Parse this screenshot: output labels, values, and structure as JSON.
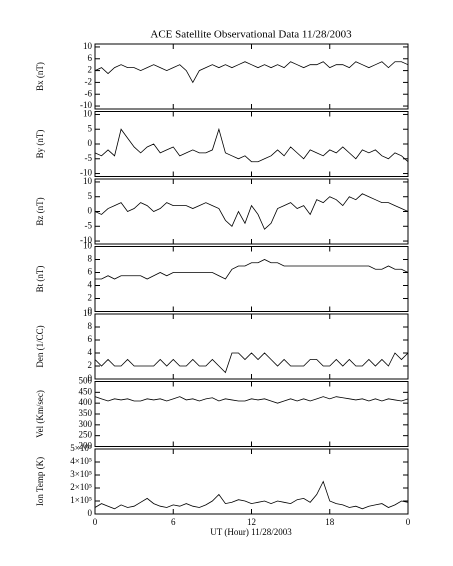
{
  "chart_data": [
    {
      "type": "line",
      "title": "ACE Satellite Observational Data   11/28/2003",
      "ylabel": "Bx (nT)",
      "color": "#000000",
      "x": [
        0,
        0.5,
        1,
        1.5,
        2,
        2.5,
        3,
        3.5,
        4,
        4.5,
        5,
        5.5,
        6,
        6.5,
        7,
        7.5,
        8,
        8.5,
        9,
        9.5,
        10,
        10.5,
        11,
        11.5,
        12,
        12.5,
        13,
        13.5,
        14,
        14.5,
        15,
        15.5,
        16,
        16.5,
        17,
        17.5,
        18,
        18.5,
        19,
        19.5,
        20,
        20.5,
        21,
        21.5,
        22,
        22.5,
        23,
        23.5,
        24
      ],
      "values": [
        2,
        3,
        1,
        3,
        4,
        3,
        3,
        2,
        3,
        4,
        3,
        2,
        3,
        4,
        2,
        -2,
        2,
        3,
        4,
        3,
        4,
        3,
        4,
        5,
        4,
        3,
        4,
        3,
        4,
        3,
        5,
        4,
        3,
        4,
        4,
        5,
        3,
        4,
        4,
        3,
        5,
        4,
        3,
        4,
        5,
        3,
        5,
        5,
        4
      ],
      "ylim": [
        -11,
        11
      ],
      "yticks": [
        -10,
        -6,
        -2,
        2,
        6,
        10
      ]
    },
    {
      "type": "line",
      "ylabel": "By (nT)",
      "color": "#000000",
      "x": [
        0,
        0.5,
        1,
        1.5,
        2,
        2.5,
        3,
        3.5,
        4,
        4.5,
        5,
        5.5,
        6,
        6.5,
        7,
        7.5,
        8,
        8.5,
        9,
        9.5,
        10,
        10.5,
        11,
        11.5,
        12,
        12.5,
        13,
        13.5,
        14,
        14.5,
        15,
        15.5,
        16,
        16.5,
        17,
        17.5,
        18,
        18.5,
        19,
        19.5,
        20,
        20.5,
        21,
        21.5,
        22,
        22.5,
        23,
        23.5,
        24
      ],
      "values": [
        -3,
        -4,
        -2,
        -4,
        5,
        2,
        -1,
        -3,
        -1,
        0,
        -3,
        -2,
        -1,
        -4,
        -3,
        -2,
        -3,
        -3,
        -2,
        5,
        -3,
        -4,
        -5,
        -4,
        -6,
        -6,
        -5,
        -4,
        -2,
        -4,
        -1,
        -3,
        -5,
        -2,
        -3,
        -4,
        -2,
        -3,
        -1,
        -3,
        -5,
        -2,
        -3,
        -2,
        -4,
        -5,
        -3,
        -4,
        -6
      ],
      "ylim": [
        -11,
        11
      ],
      "yticks": [
        -10,
        -5,
        0,
        5,
        10
      ]
    },
    {
      "type": "line",
      "ylabel": "Bz (nT)",
      "color": "#000000",
      "x": [
        0,
        0.5,
        1,
        1.5,
        2,
        2.5,
        3,
        3.5,
        4,
        4.5,
        5,
        5.5,
        6,
        6.5,
        7,
        7.5,
        8,
        8.5,
        9,
        9.5,
        10,
        10.5,
        11,
        11.5,
        12,
        12.5,
        13,
        13.5,
        14,
        14.5,
        15,
        15.5,
        16,
        16.5,
        17,
        17.5,
        18,
        18.5,
        19,
        19.5,
        20,
        20.5,
        21,
        21.5,
        22,
        22.5,
        23,
        23.5,
        24
      ],
      "values": [
        0,
        -1,
        1,
        2,
        3,
        0,
        1,
        3,
        2,
        0,
        1,
        3,
        2,
        2,
        2,
        1,
        2,
        3,
        2,
        1,
        -3,
        -5,
        0,
        -4,
        2,
        -1,
        -6,
        -4,
        1,
        2,
        3,
        1,
        2,
        -1,
        4,
        3,
        5,
        4,
        2,
        5,
        4,
        6,
        5,
        4,
        3,
        3,
        2,
        1,
        0
      ],
      "ylim": [
        -11,
        11
      ],
      "yticks": [
        -10,
        -5,
        0,
        5,
        10
      ]
    },
    {
      "type": "line",
      "ylabel": "Bt (nT)",
      "color": "#000000",
      "x": [
        0,
        0.5,
        1,
        1.5,
        2,
        2.5,
        3,
        3.5,
        4,
        4.5,
        5,
        5.5,
        6,
        6.5,
        7,
        7.5,
        8,
        8.5,
        9,
        9.5,
        10,
        10.5,
        11,
        11.5,
        12,
        12.5,
        13,
        13.5,
        14,
        14.5,
        15,
        15.5,
        16,
        16.5,
        17,
        17.5,
        18,
        18.5,
        19,
        19.5,
        20,
        20.5,
        21,
        21.5,
        22,
        22.5,
        23,
        23.5,
        24
      ],
      "values": [
        5,
        5,
        5.5,
        5,
        5.5,
        5.5,
        5.5,
        5.5,
        5,
        5.5,
        6,
        5.5,
        6,
        6,
        6,
        6,
        6,
        6,
        6,
        5.5,
        5,
        6.5,
        7,
        7,
        7.5,
        7.5,
        8,
        7.5,
        7.5,
        7,
        7,
        7,
        7,
        7,
        7,
        7,
        7,
        7,
        7,
        7,
        7,
        7,
        7,
        6.5,
        6.5,
        7,
        6.5,
        6.5,
        6
      ],
      "ylim": [
        0,
        10
      ],
      "yticks": [
        0,
        2,
        4,
        6,
        8,
        10
      ]
    },
    {
      "type": "line",
      "ylabel": "Den (1/CC)",
      "color": "#000000",
      "x": [
        0,
        0.5,
        1,
        1.5,
        2,
        2.5,
        3,
        3.5,
        4,
        4.5,
        5,
        5.5,
        6,
        6.5,
        7,
        7.5,
        8,
        8.5,
        9,
        9.5,
        10,
        10.5,
        11,
        11.5,
        12,
        12.5,
        13,
        13.5,
        14,
        14.5,
        15,
        15.5,
        16,
        16.5,
        17,
        17.5,
        18,
        18.5,
        19,
        19.5,
        20,
        20.5,
        21,
        21.5,
        22,
        22.5,
        23,
        23.5,
        24
      ],
      "values": [
        3,
        2,
        3,
        2,
        2,
        3,
        2,
        2,
        2,
        2,
        3,
        2,
        3,
        2,
        2,
        3,
        2,
        2,
        3,
        2,
        1,
        4,
        4,
        3,
        4,
        3,
        4,
        3,
        2,
        3,
        2,
        2,
        2,
        3,
        3,
        2,
        2,
        3,
        2,
        3,
        2,
        2,
        3,
        2,
        3,
        2,
        4,
        3,
        4
      ],
      "ylim": [
        0,
        10
      ],
      "yticks": [
        0,
        2,
        4,
        6,
        8,
        10
      ]
    },
    {
      "type": "line",
      "ylabel": "Vel (Km/sec)",
      "color": "#000000",
      "x": [
        0,
        0.5,
        1,
        1.5,
        2,
        2.5,
        3,
        3.5,
        4,
        4.5,
        5,
        5.5,
        6,
        6.5,
        7,
        7.5,
        8,
        8.5,
        9,
        9.5,
        10,
        10.5,
        11,
        11.5,
        12,
        12.5,
        13,
        13.5,
        14,
        14.5,
        15,
        15.5,
        16,
        16.5,
        17,
        17.5,
        18,
        18.5,
        19,
        19.5,
        20,
        20.5,
        21,
        21.5,
        22,
        22.5,
        23,
        23.5,
        24
      ],
      "values": [
        430,
        420,
        410,
        420,
        415,
        420,
        410,
        410,
        420,
        415,
        420,
        410,
        420,
        430,
        415,
        420,
        410,
        420,
        425,
        410,
        420,
        415,
        410,
        410,
        420,
        415,
        420,
        410,
        400,
        410,
        420,
        410,
        420,
        410,
        420,
        430,
        420,
        430,
        425,
        420,
        415,
        420,
        410,
        420,
        410,
        420,
        415,
        410,
        420
      ],
      "ylim": [
        200,
        500
      ],
      "yticks": [
        200,
        250,
        300,
        350,
        400,
        450,
        500
      ]
    },
    {
      "type": "line",
      "ylabel": "Ion Temp (K)",
      "xlabel": "UT (Hour)  11/28/2003",
      "color": "#000000",
      "x": [
        0,
        0.5,
        1,
        1.5,
        2,
        2.5,
        3,
        3.5,
        4,
        4.5,
        5,
        5.5,
        6,
        6.5,
        7,
        7.5,
        8,
        8.5,
        9,
        9.5,
        10,
        10.5,
        11,
        11.5,
        12,
        12.5,
        13,
        13.5,
        14,
        14.5,
        15,
        15.5,
        16,
        16.5,
        17,
        17.5,
        18,
        18.5,
        19,
        19.5,
        20,
        20.5,
        21,
        21.5,
        22,
        22.5,
        23,
        23.5,
        24
      ],
      "values": [
        50000,
        80000,
        60000,
        40000,
        70000,
        50000,
        60000,
        90000,
        120000,
        80000,
        60000,
        50000,
        70000,
        60000,
        80000,
        60000,
        50000,
        70000,
        100000,
        150000,
        80000,
        90000,
        110000,
        100000,
        80000,
        90000,
        100000,
        80000,
        100000,
        90000,
        80000,
        110000,
        120000,
        90000,
        150000,
        250000,
        100000,
        80000,
        70000,
        50000,
        60000,
        40000,
        60000,
        70000,
        80000,
        50000,
        70000,
        100000,
        90000
      ],
      "ylim": [
        0,
        500000
      ],
      "yticks": [
        0,
        {
          "value": 100000,
          "label": "1×10⁵"
        },
        {
          "value": 200000,
          "label": "2×10⁵"
        },
        {
          "value": 300000,
          "label": "3×10⁵"
        },
        {
          "value": 400000,
          "label": "4×10⁵"
        },
        {
          "value": 500000,
          "label": "5×10⁵"
        }
      ],
      "xlim": [
        0,
        24
      ],
      "xticks": [
        0,
        6,
        12,
        18,
        {
          "value": 24,
          "label": "0"
        }
      ]
    }
  ]
}
